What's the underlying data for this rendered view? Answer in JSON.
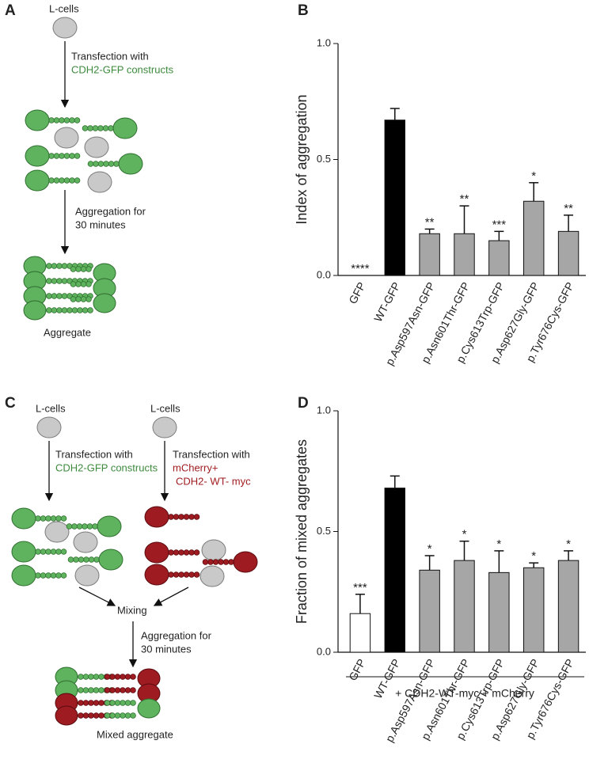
{
  "panel_labels": [
    "A",
    "B",
    "C",
    "D"
  ],
  "diagram_a": {
    "cells": "L-cells",
    "step1": "Transfection with",
    "construct": "CDH2-GFP constructs",
    "step2": "Aggregation for",
    "duration": "30 minutes",
    "result": "Aggregate"
  },
  "diagram_c": {
    "cells_left": "L-cells",
    "cells_right": "L-cells",
    "step1_left": "Transfection with",
    "construct_left": "CDH2-GFP constructs",
    "step1_right": "Transfection with",
    "construct_right_1": "mCherry+",
    "construct_right_2": "CDH2- WT- myc",
    "mixing": "Mixing",
    "step2": "Aggregation for",
    "duration": "30 minutes",
    "result": "Mixed aggregate"
  },
  "chart_data": [
    {
      "type": "bar",
      "ylabel": "Index of aggregation",
      "categories": [
        "GFP",
        "WT-GFP",
        "p.Asp597Asn-GFP",
        "p.Asn601Thr-GFP",
        "p.Cys613Trp-GFP",
        "p.Asp627Gly-GFP",
        "p.Tyr676Cys-GFP"
      ],
      "values": [
        0,
        0.67,
        0.18,
        0.18,
        0.15,
        0.32,
        0.19
      ],
      "errors": [
        null,
        0.05,
        0.02,
        0.12,
        0.04,
        0.08,
        0.07
      ],
      "significance": [
        "****",
        null,
        "**",
        "**",
        "***",
        "*",
        "**"
      ],
      "colors": [
        "#ffffff",
        "#000000",
        "#a6a6a6",
        "#a6a6a6",
        "#a6a6a6",
        "#a6a6a6",
        "#a6a6a6"
      ],
      "ylim": [
        0,
        1.0
      ],
      "yticks": [
        {
          "value": 0,
          "label": "0.0"
        },
        {
          "value": 0.5,
          "label": "0.5"
        },
        {
          "value": 1.0,
          "label": "1.0"
        }
      ]
    },
    {
      "type": "bar",
      "ylabel": "Fraction of mixed aggregates",
      "xlabel": "+ CDH2-WT-myc + mCherry",
      "categories": [
        "GFP",
        "WT-GFP",
        "p.Asp597Asn-GFP",
        "p.Asn601Thr-GFP",
        "p.Cys613Trp-GFP",
        "p.Asp627Gly-GFP",
        "p.Tyr676Cys-GFP"
      ],
      "values": [
        0.16,
        0.68,
        0.34,
        0.38,
        0.33,
        0.35,
        0.38
      ],
      "errors": [
        0.08,
        0.05,
        0.06,
        0.08,
        0.09,
        0.02,
        0.04
      ],
      "significance": [
        "***",
        null,
        "*",
        "*",
        "*",
        "*",
        "*"
      ],
      "colors": [
        "#ffffff",
        "#000000",
        "#a6a6a6",
        "#a6a6a6",
        "#a6a6a6",
        "#a6a6a6",
        "#a6a6a6"
      ],
      "ylim": [
        0,
        1.0
      ],
      "yticks": [
        {
          "value": 0,
          "label": "0.0"
        },
        {
          "value": 0.5,
          "label": "0.5"
        },
        {
          "value": 1.0,
          "label": "1.0"
        }
      ]
    }
  ]
}
